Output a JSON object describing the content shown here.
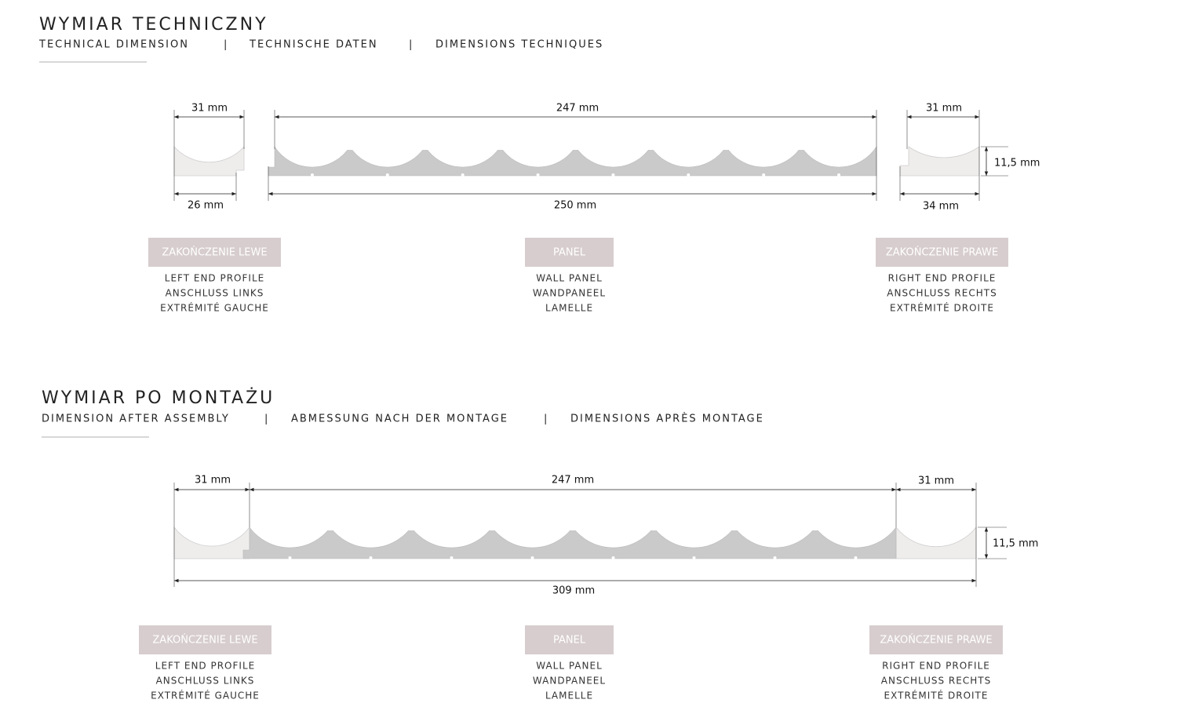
{
  "sections": [
    {
      "title": "WYMIAR TECHNICZNY",
      "subtitles": [
        "TECHNICAL DIMENSION",
        "TECHNISCHE DATEN",
        "DIMENSIONS TECHNIQUES"
      ],
      "separator": "|",
      "dimensions": [
        "31 mm",
        "26 mm",
        "247 mm",
        "250 mm",
        "31 mm",
        "34 mm",
        "11,5 mm"
      ],
      "items": [
        {
          "badge": "ZAKOŃCZENIE LEWE",
          "lines": [
            "LEFT END PROFILE",
            "ANSCHLUSS LINKS",
            "EXTRÉMITÉ GAUCHE"
          ]
        },
        {
          "badge": "PANEL",
          "lines": [
            "WALL PANEL",
            "WANDPANEEL",
            "LAMELLE"
          ]
        },
        {
          "badge": "ZAKOŃCZENIE PRAWE",
          "lines": [
            "RIGHT END PROFILE",
            "ANSCHLUSS RECHTS",
            "EXTRÉMITÉ DROITE"
          ]
        }
      ]
    },
    {
      "title": "WYMIAR PO MONTAŻU",
      "subtitles": [
        "DIMENSION AFTER ASSEMBLY",
        "ABMESSUNG NACH DER MONTAGE",
        "DIMENSIONS APRÈS MONTAGE"
      ],
      "separator": "|",
      "dimensions": [
        "31 mm",
        "247 mm",
        "31 mm",
        "11,5 mm",
        "309 mm"
      ],
      "items": [
        {
          "badge": "ZAKOŃCZENIE LEWE",
          "lines": [
            "LEFT END PROFILE",
            "ANSCHLUSS LINKS",
            "EXTRÉMITÉ GAUCHE"
          ]
        },
        {
          "badge": "PANEL",
          "lines": [
            "WALL PANEL",
            "WANDPANEEL",
            "LAMELLE"
          ]
        },
        {
          "badge": "ZAKOŃCZENIE PRAWE",
          "lines": [
            "RIGHT END PROFILE",
            "ANSCHLUSS RECHTS",
            "EXTRÉMITÉ DROITE"
          ]
        }
      ]
    }
  ]
}
